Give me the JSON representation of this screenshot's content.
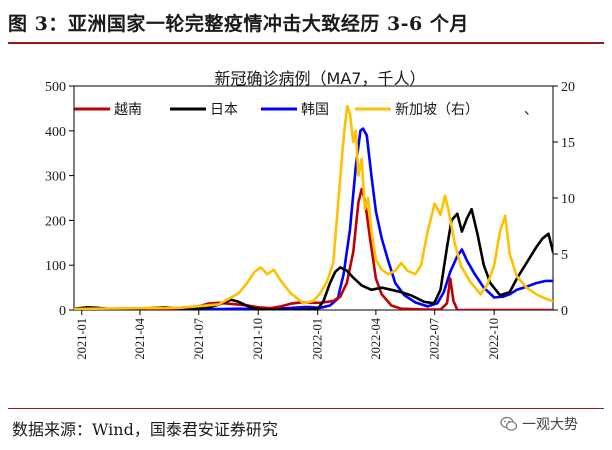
{
  "figure": {
    "title": "图 3：亚洲国家一轮完整疫情冲击大致经历 3-6 个月",
    "source": "数据来源：Wind，国泰君安证券研究",
    "watermark": "一观大势"
  },
  "chart_data": {
    "type": "line",
    "title": "新冠确诊病例（MA7，千人）",
    "ylim_left": [
      0,
      500
    ],
    "yticks_left": [
      0,
      100,
      200,
      300,
      400,
      500
    ],
    "ylim_right": [
      0,
      20
    ],
    "yticks_right": [
      0,
      5,
      10,
      15,
      20
    ],
    "xlim": [
      "2020-12-20",
      "2022-12-31"
    ],
    "x_ticks": [
      "2021-01",
      "2021-04",
      "2021-07",
      "2021-10",
      "2022-01",
      "2022-04",
      "2022-07",
      "2022-10"
    ],
    "legend_position": "top",
    "legend_trailing": "、",
    "series": [
      {
        "name": "越南",
        "color": "#c00000",
        "axis": "left",
        "points": [
          [
            "2020-12-20",
            2
          ],
          [
            "2021-04-01",
            0
          ],
          [
            "2021-05-01",
            1
          ],
          [
            "2021-05-25",
            3
          ],
          [
            "2021-06-15",
            6
          ],
          [
            "2021-07-01",
            8
          ],
          [
            "2021-07-15",
            14
          ],
          [
            "2021-08-01",
            16
          ],
          [
            "2021-08-25",
            13
          ],
          [
            "2021-09-15",
            10
          ],
          [
            "2021-10-01",
            6
          ],
          [
            "2021-10-20",
            4
          ],
          [
            "2021-11-05",
            8
          ],
          [
            "2021-11-20",
            14
          ],
          [
            "2021-12-05",
            17
          ],
          [
            "2021-12-20",
            16
          ],
          [
            "2022-01-05",
            16
          ],
          [
            "2022-01-25",
            20
          ],
          [
            "2022-02-05",
            30
          ],
          [
            "2022-02-15",
            60
          ],
          [
            "2022-02-25",
            130
          ],
          [
            "2022-03-05",
            240
          ],
          [
            "2022-03-10",
            270
          ],
          [
            "2022-03-15",
            245
          ],
          [
            "2022-03-22",
            170
          ],
          [
            "2022-04-01",
            70
          ],
          [
            "2022-04-10",
            35
          ],
          [
            "2022-04-25",
            10
          ],
          [
            "2022-05-10",
            3
          ],
          [
            "2022-06-15",
            1
          ],
          [
            "2022-07-10",
            1
          ],
          [
            "2022-07-20",
            15
          ],
          [
            "2022-07-25",
            70
          ],
          [
            "2022-07-30",
            20
          ],
          [
            "2022-08-05",
            0
          ],
          [
            "2022-12-31",
            0
          ]
        ]
      },
      {
        "name": "日本",
        "color": "#000000",
        "axis": "left",
        "points": [
          [
            "2020-12-20",
            3
          ],
          [
            "2021-01-10",
            6
          ],
          [
            "2021-01-25",
            5
          ],
          [
            "2021-02-15",
            2
          ],
          [
            "2021-04-01",
            2
          ],
          [
            "2021-04-15",
            4
          ],
          [
            "2021-05-10",
            6
          ],
          [
            "2021-05-25",
            4
          ],
          [
            "2021-06-20",
            2
          ],
          [
            "2021-07-15",
            5
          ],
          [
            "2021-08-01",
            12
          ],
          [
            "2021-08-20",
            23
          ],
          [
            "2021-09-01",
            18
          ],
          [
            "2021-09-20",
            5
          ],
          [
            "2021-10-10",
            1
          ],
          [
            "2021-12-01",
            0
          ],
          [
            "2022-01-01",
            2
          ],
          [
            "2022-01-10",
            20
          ],
          [
            "2022-01-20",
            60
          ],
          [
            "2022-01-28",
            85
          ],
          [
            "2022-02-05",
            95
          ],
          [
            "2022-02-15",
            88
          ],
          [
            "2022-02-25",
            72
          ],
          [
            "2022-03-10",
            55
          ],
          [
            "2022-03-25",
            45
          ],
          [
            "2022-04-10",
            50
          ],
          [
            "2022-04-25",
            45
          ],
          [
            "2022-05-10",
            40
          ],
          [
            "2022-05-25",
            33
          ],
          [
            "2022-06-15",
            18
          ],
          [
            "2022-06-30",
            15
          ],
          [
            "2022-07-10",
            45
          ],
          [
            "2022-07-20",
            140
          ],
          [
            "2022-07-27",
            200
          ],
          [
            "2022-08-05",
            215
          ],
          [
            "2022-08-12",
            175
          ],
          [
            "2022-08-20",
            205
          ],
          [
            "2022-08-27",
            225
          ],
          [
            "2022-09-05",
            170
          ],
          [
            "2022-09-15",
            100
          ],
          [
            "2022-09-25",
            60
          ],
          [
            "2022-10-10",
            33
          ],
          [
            "2022-10-25",
            40
          ],
          [
            "2022-11-05",
            70
          ],
          [
            "2022-11-20",
            105
          ],
          [
            "2022-12-05",
            140
          ],
          [
            "2022-12-15",
            160
          ],
          [
            "2022-12-24",
            170
          ],
          [
            "2022-12-31",
            130
          ]
        ]
      },
      {
        "name": "韩国",
        "color": "#0000ff",
        "axis": "left",
        "points": [
          [
            "2020-12-20",
            1
          ],
          [
            "2021-06-15",
            1
          ],
          [
            "2021-08-01",
            2
          ],
          [
            "2021-09-01",
            3
          ],
          [
            "2021-10-01",
            2
          ],
          [
            "2021-11-15",
            4
          ],
          [
            "2021-12-15",
            7
          ],
          [
            "2022-01-05",
            5
          ],
          [
            "2022-01-20",
            10
          ],
          [
            "2022-02-01",
            25
          ],
          [
            "2022-02-10",
            80
          ],
          [
            "2022-02-20",
            180
          ],
          [
            "2022-03-01",
            320
          ],
          [
            "2022-03-08",
            400
          ],
          [
            "2022-03-12",
            405
          ],
          [
            "2022-03-18",
            390
          ],
          [
            "2022-03-25",
            300
          ],
          [
            "2022-04-01",
            220
          ],
          [
            "2022-04-10",
            160
          ],
          [
            "2022-04-20",
            110
          ],
          [
            "2022-05-01",
            60
          ],
          [
            "2022-05-15",
            33
          ],
          [
            "2022-06-01",
            17
          ],
          [
            "2022-06-20",
            8
          ],
          [
            "2022-07-05",
            15
          ],
          [
            "2022-07-15",
            40
          ],
          [
            "2022-07-25",
            85
          ],
          [
            "2022-08-05",
            120
          ],
          [
            "2022-08-12",
            135
          ],
          [
            "2022-08-20",
            110
          ],
          [
            "2022-09-01",
            80
          ],
          [
            "2022-09-15",
            50
          ],
          [
            "2022-10-01",
            28
          ],
          [
            "2022-10-15",
            30
          ],
          [
            "2022-10-25",
            35
          ],
          [
            "2022-11-05",
            45
          ],
          [
            "2022-11-20",
            52
          ],
          [
            "2022-12-05",
            60
          ],
          [
            "2022-12-20",
            65
          ],
          [
            "2022-12-31",
            65
          ]
        ]
      },
      {
        "name": "新加坡（右）",
        "color": "#ffc000",
        "axis": "right",
        "points": [
          [
            "2020-12-20",
            0.1
          ],
          [
            "2021-06-01",
            0.2
          ],
          [
            "2021-08-01",
            0.5
          ],
          [
            "2021-09-01",
            1.5
          ],
          [
            "2021-09-15",
            2.5
          ],
          [
            "2021-09-25",
            3.4
          ],
          [
            "2021-10-05",
            3.8
          ],
          [
            "2021-10-15",
            3.2
          ],
          [
            "2021-10-25",
            3.6
          ],
          [
            "2021-11-05",
            2.6
          ],
          [
            "2021-11-20",
            1.5
          ],
          [
            "2021-12-10",
            0.6
          ],
          [
            "2021-12-25",
            0.8
          ],
          [
            "2022-01-05",
            1.5
          ],
          [
            "2022-01-15",
            2.5
          ],
          [
            "2022-01-25",
            4.2
          ],
          [
            "2022-02-01",
            9
          ],
          [
            "2022-02-08",
            14
          ],
          [
            "2022-02-12",
            16.5
          ],
          [
            "2022-02-16",
            18.2
          ],
          [
            "2022-02-20",
            17.5
          ],
          [
            "2022-02-25",
            15
          ],
          [
            "2022-03-01",
            16
          ],
          [
            "2022-03-05",
            12
          ],
          [
            "2022-03-10",
            13.5
          ],
          [
            "2022-03-15",
            9
          ],
          [
            "2022-03-20",
            10
          ],
          [
            "2022-03-25",
            7
          ],
          [
            "2022-04-01",
            4.5
          ],
          [
            "2022-04-10",
            3.6
          ],
          [
            "2022-04-20",
            3.2
          ],
          [
            "2022-05-01",
            3.5
          ],
          [
            "2022-05-10",
            4.2
          ],
          [
            "2022-05-20",
            3.5
          ],
          [
            "2022-06-01",
            3.2
          ],
          [
            "2022-06-10",
            4
          ],
          [
            "2022-06-20",
            7
          ],
          [
            "2022-07-01",
            9.5
          ],
          [
            "2022-07-10",
            8.5
          ],
          [
            "2022-07-17",
            10.2
          ],
          [
            "2022-07-22",
            9
          ],
          [
            "2022-08-01",
            6
          ],
          [
            "2022-08-10",
            4
          ],
          [
            "2022-08-25",
            2.5
          ],
          [
            "2022-09-10",
            1.4
          ],
          [
            "2022-09-20",
            2.2
          ],
          [
            "2022-10-01",
            4
          ],
          [
            "2022-10-10",
            7
          ],
          [
            "2022-10-18",
            8.4
          ],
          [
            "2022-10-25",
            5
          ],
          [
            "2022-11-05",
            3
          ],
          [
            "2022-11-20",
            2
          ],
          [
            "2022-12-05",
            1.4
          ],
          [
            "2022-12-20",
            1
          ],
          [
            "2022-12-31",
            0.8
          ]
        ]
      }
    ]
  }
}
